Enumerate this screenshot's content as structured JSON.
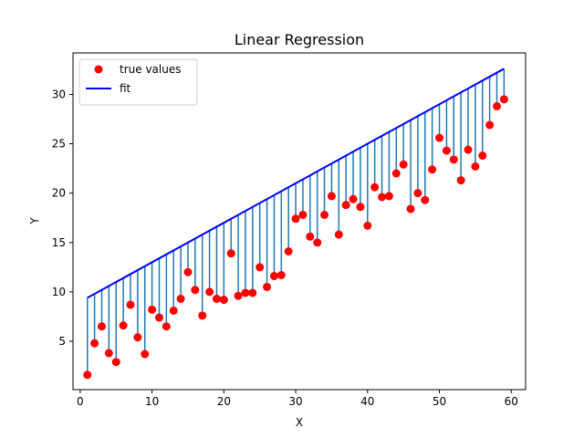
{
  "chart_data": {
    "type": "scatter",
    "title": "Linear Regression",
    "xlabel": "X",
    "ylabel": "Y",
    "xlim": [
      -1,
      62
    ],
    "ylim": [
      0.1,
      34.2
    ],
    "xticks": [
      0,
      10,
      20,
      30,
      40,
      50,
      60
    ],
    "yticks": [
      5,
      10,
      15,
      20,
      25,
      30
    ],
    "grid": false,
    "legend_position": "top-left",
    "series": [
      {
        "name": "true values",
        "kind": "points",
        "color": "#ff0000",
        "x": [
          1,
          2,
          3,
          4,
          5,
          6,
          7,
          8,
          9,
          10,
          11,
          12,
          13,
          14,
          15,
          16,
          17,
          18,
          19,
          20,
          21,
          22,
          23,
          24,
          25,
          26,
          27,
          28,
          29,
          30,
          31,
          32,
          33,
          34,
          35,
          36,
          37,
          38,
          39,
          40,
          41,
          42,
          43,
          44,
          45,
          46,
          47,
          48,
          49,
          50,
          51,
          52,
          53,
          54,
          55,
          56,
          57,
          58,
          59
        ],
        "y": [
          1.6,
          4.8,
          6.5,
          3.8,
          2.9,
          6.6,
          8.7,
          5.4,
          3.7,
          8.2,
          7.4,
          6.5,
          8.1,
          9.3,
          12.0,
          10.2,
          7.6,
          10.0,
          9.3,
          9.2,
          13.9,
          9.6,
          9.9,
          9.9,
          12.5,
          10.5,
          11.6,
          11.7,
          14.1,
          17.4,
          17.8,
          15.6,
          15.0,
          17.8,
          19.7,
          15.8,
          18.8,
          19.4,
          18.6,
          16.7,
          20.6,
          19.6,
          19.7,
          22.0,
          22.9,
          18.4,
          20.0,
          19.3,
          22.4,
          25.6,
          24.3,
          23.4,
          21.3,
          24.4,
          22.7,
          23.8,
          26.9,
          28.8,
          29.5
        ]
      },
      {
        "name": "fit",
        "kind": "line",
        "color": "#0000ff",
        "x": [
          1,
          59
        ],
        "y": [
          9.4,
          32.6
        ]
      }
    ],
    "residual_color": "#1f77b4"
  }
}
